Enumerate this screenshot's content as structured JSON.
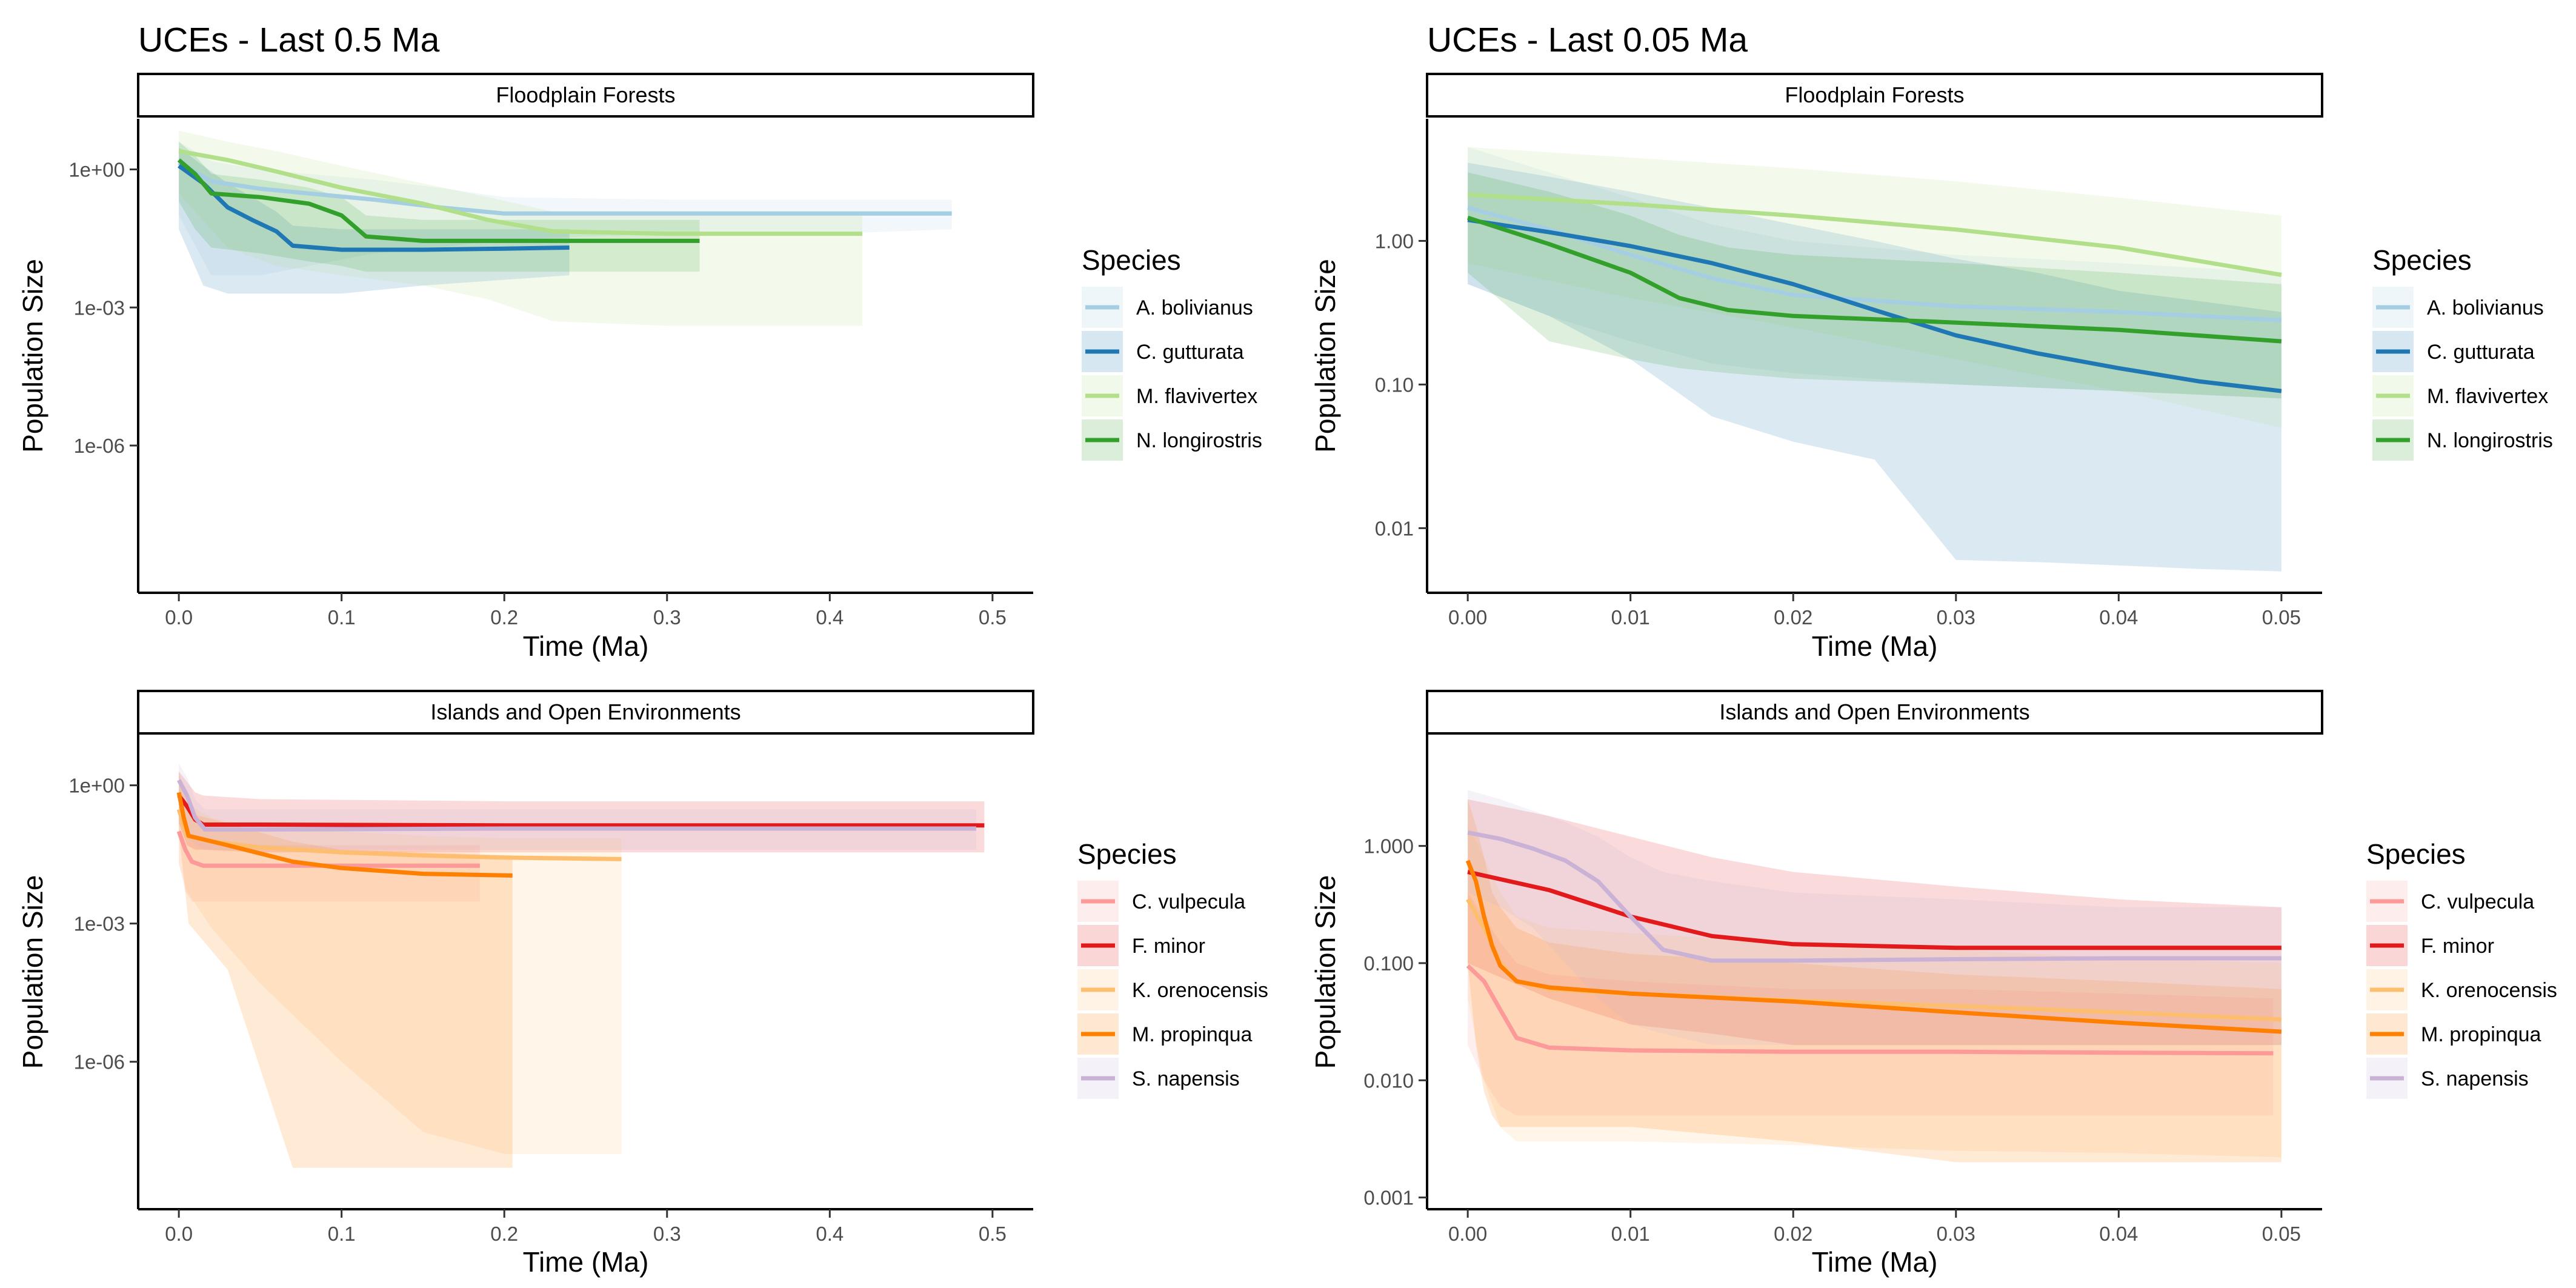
{
  "chart_data": [
    {
      "type": "line",
      "title": "UCEs - Last 0.5 Ma",
      "facet": "Floodplain Forests",
      "xlabel": "Time (Ma)",
      "ylabel": "Population Size",
      "y_scale": "log",
      "xlim": [
        -0.025,
        0.525
      ],
      "ylim_log10": [
        -9.2,
        1.1
      ],
      "x_ticks": [
        0.0,
        0.1,
        0.2,
        0.3,
        0.4,
        0.5
      ],
      "x_tick_labels": [
        "0.0",
        "0.1",
        "0.2",
        "0.3",
        "0.4",
        "0.5"
      ],
      "y_ticks_log10": [
        0,
        -3,
        -6
      ],
      "y_tick_labels": [
        "1e+00",
        "1e-03",
        "1e-06"
      ],
      "legend": {
        "title": "Species",
        "position": "right"
      },
      "series": [
        {
          "name": "A. bolivianus",
          "color": "#a6cee3",
          "x": [
            0.0,
            0.02,
            0.05,
            0.08,
            0.12,
            0.16,
            0.2,
            0.3,
            0.4,
            0.475
          ],
          "y": [
            1.4,
            0.55,
            0.38,
            0.3,
            0.22,
            0.15,
            0.11,
            0.11,
            0.11,
            0.11
          ],
          "band_upper": [
            4.0,
            1.5,
            1.0,
            0.8,
            0.6,
            0.4,
            0.25,
            0.22,
            0.22,
            0.22
          ],
          "band_lower": [
            0.1,
            0.005,
            0.005,
            0.008,
            0.015,
            0.02,
            0.03,
            0.04,
            0.04,
            0.05
          ]
        },
        {
          "name": "C. gutturata",
          "color": "#1f78b4",
          "x": [
            0.0,
            0.015,
            0.03,
            0.045,
            0.06,
            0.07,
            0.1,
            0.15,
            0.2,
            0.24
          ],
          "y": [
            1.2,
            0.5,
            0.15,
            0.08,
            0.045,
            0.022,
            0.018,
            0.018,
            0.019,
            0.02
          ],
          "band_upper": [
            3.0,
            1.2,
            0.5,
            0.25,
            0.12,
            0.06,
            0.05,
            0.05,
            0.05,
            0.05
          ],
          "band_lower": [
            0.05,
            0.003,
            0.002,
            0.002,
            0.002,
            0.002,
            0.002,
            0.003,
            0.004,
            0.005
          ]
        },
        {
          "name": "M. flavivertex",
          "color": "#b2df8a",
          "x": [
            0.0,
            0.03,
            0.06,
            0.1,
            0.15,
            0.19,
            0.23,
            0.3,
            0.42
          ],
          "y": [
            2.5,
            1.6,
            0.9,
            0.4,
            0.18,
            0.08,
            0.045,
            0.04,
            0.04
          ],
          "band_upper": [
            7.0,
            4.0,
            2.5,
            1.2,
            0.5,
            0.25,
            0.12,
            0.1,
            0.1
          ],
          "band_lower": [
            0.3,
            0.02,
            0.008,
            0.005,
            0.003,
            0.0015,
            0.0005,
            0.0004,
            0.0004
          ]
        },
        {
          "name": "N. longirostris",
          "color": "#33a02c",
          "x": [
            0.0,
            0.01,
            0.02,
            0.05,
            0.08,
            0.1,
            0.115,
            0.15,
            0.2,
            0.32
          ],
          "y": [
            1.6,
            0.8,
            0.3,
            0.25,
            0.18,
            0.1,
            0.035,
            0.028,
            0.028,
            0.028
          ],
          "band_upper": [
            4.0,
            2.0,
            0.8,
            0.6,
            0.4,
            0.25,
            0.1,
            0.08,
            0.08,
            0.08
          ],
          "band_lower": [
            0.2,
            0.05,
            0.02,
            0.015,
            0.01,
            0.008,
            0.006,
            0.006,
            0.006,
            0.006
          ]
        }
      ]
    },
    {
      "type": "line",
      "title": "UCEs - Last 0.05 Ma",
      "facet": "Floodplain Forests",
      "xlabel": "Time (Ma)",
      "ylabel": "Population Size",
      "y_scale": "log",
      "xlim": [
        -0.0025,
        0.0525
      ],
      "ylim_log10": [
        -2.45,
        0.85
      ],
      "x_ticks": [
        0.0,
        0.01,
        0.02,
        0.03,
        0.04,
        0.05
      ],
      "x_tick_labels": [
        "0.00",
        "0.01",
        "0.02",
        "0.03",
        "0.04",
        "0.05"
      ],
      "y_ticks_log10": [
        0,
        -1,
        -2
      ],
      "y_tick_labels": [
        "1.00",
        "0.10",
        "0.01"
      ],
      "legend": {
        "title": "Species",
        "position": "right"
      },
      "series": [
        {
          "name": "A. bolivianus",
          "color": "#a6cee3",
          "x": [
            0.0,
            0.005,
            0.01,
            0.015,
            0.02,
            0.03,
            0.04,
            0.05
          ],
          "y": [
            1.7,
            1.2,
            0.8,
            0.55,
            0.42,
            0.35,
            0.32,
            0.28
          ],
          "band_upper": [
            4.5,
            3.0,
            2.0,
            1.3,
            1.0,
            0.8,
            0.7,
            0.6
          ],
          "band_lower": [
            0.5,
            0.3,
            0.2,
            0.14,
            0.12,
            0.1,
            0.09,
            0.08
          ]
        },
        {
          "name": "C. gutturata",
          "color": "#1f78b4",
          "x": [
            0.0,
            0.005,
            0.01,
            0.015,
            0.02,
            0.025,
            0.03,
            0.035,
            0.04,
            0.045,
            0.05
          ],
          "y": [
            1.4,
            1.15,
            0.92,
            0.7,
            0.5,
            0.33,
            0.22,
            0.165,
            0.13,
            0.105,
            0.09
          ],
          "band_upper": [
            3.5,
            2.8,
            2.2,
            1.7,
            1.3,
            1.0,
            0.75,
            0.6,
            0.45,
            0.38,
            0.32
          ],
          "band_lower": [
            0.5,
            0.3,
            0.15,
            0.06,
            0.04,
            0.03,
            0.006,
            0.0058,
            0.0055,
            0.0052,
            0.005
          ]
        },
        {
          "name": "M. flavivertex",
          "color": "#b2df8a",
          "x": [
            0.0,
            0.01,
            0.02,
            0.03,
            0.04,
            0.05
          ],
          "y": [
            2.1,
            1.8,
            1.5,
            1.2,
            0.9,
            0.58
          ],
          "band_upper": [
            4.5,
            3.8,
            3.2,
            2.6,
            2.0,
            1.5
          ],
          "band_lower": [
            0.7,
            0.4,
            0.25,
            0.15,
            0.09,
            0.05
          ]
        },
        {
          "name": "N. longirostris",
          "color": "#33a02c",
          "x": [
            0.0,
            0.005,
            0.01,
            0.013,
            0.016,
            0.02,
            0.03,
            0.04,
            0.05
          ],
          "y": [
            1.45,
            0.95,
            0.6,
            0.4,
            0.33,
            0.3,
            0.27,
            0.24,
            0.2
          ],
          "band_upper": [
            3.0,
            2.2,
            1.5,
            1.1,
            0.9,
            0.8,
            0.7,
            0.6,
            0.5
          ],
          "band_lower": [
            0.6,
            0.2,
            0.15,
            0.13,
            0.12,
            0.11,
            0.1,
            0.09,
            0.08
          ]
        }
      ]
    },
    {
      "type": "line",
      "title": "",
      "facet": "Islands and Open Environments",
      "xlabel": "Time (Ma)",
      "ylabel": "Population Size",
      "y_scale": "log",
      "xlim": [
        -0.025,
        0.525
      ],
      "ylim_log10": [
        -9.2,
        1.1
      ],
      "x_ticks": [
        0.0,
        0.1,
        0.2,
        0.3,
        0.4,
        0.5
      ],
      "x_tick_labels": [
        "0.0",
        "0.1",
        "0.2",
        "0.3",
        "0.4",
        "0.5"
      ],
      "y_ticks_log10": [
        0,
        -3,
        -6
      ],
      "y_tick_labels": [
        "1e+00",
        "1e-03",
        "1e-06"
      ],
      "legend": {
        "title": "Species",
        "position": "right"
      },
      "series": [
        {
          "name": "C. vulpecula",
          "color": "#fb9a99",
          "x": [
            0.0,
            0.004,
            0.008,
            0.015,
            0.05,
            0.1,
            0.185
          ],
          "y": [
            0.1,
            0.04,
            0.022,
            0.018,
            0.018,
            0.018,
            0.018
          ],
          "band_upper": [
            0.4,
            0.15,
            0.08,
            0.06,
            0.05,
            0.05,
            0.05
          ],
          "band_lower": [
            0.02,
            0.005,
            0.003,
            0.003,
            0.003,
            0.003,
            0.003
          ]
        },
        {
          "name": "F. minor",
          "color": "#e31a1c",
          "x": [
            0.0,
            0.005,
            0.01,
            0.015,
            0.05,
            0.2,
            0.35,
            0.495
          ],
          "y": [
            0.6,
            0.35,
            0.18,
            0.14,
            0.14,
            0.135,
            0.135,
            0.135
          ],
          "band_upper": [
            2.0,
            1.2,
            0.7,
            0.6,
            0.5,
            0.45,
            0.45,
            0.45
          ],
          "band_lower": [
            0.15,
            0.05,
            0.04,
            0.04,
            0.035,
            0.035,
            0.035,
            0.035
          ]
        },
        {
          "name": "K. orenocensis",
          "color": "#fdbf6f",
          "x": [
            0.0,
            0.005,
            0.02,
            0.05,
            0.1,
            0.15,
            0.2,
            0.272
          ],
          "y": [
            0.3,
            0.08,
            0.06,
            0.045,
            0.035,
            0.03,
            0.027,
            0.025
          ],
          "band_upper": [
            1.0,
            0.4,
            0.2,
            0.12,
            0.1,
            0.08,
            0.07,
            0.07
          ],
          "band_lower": [
            0.02,
            0.005,
            0.0008,
            5e-05,
            1e-06,
            3e-08,
            1e-08,
            1e-08
          ]
        },
        {
          "name": "M. propinqua",
          "color": "#ff7f00",
          "x": [
            0.0,
            0.003,
            0.006,
            0.03,
            0.07,
            0.1,
            0.15,
            0.205
          ],
          "y": [
            0.7,
            0.2,
            0.08,
            0.05,
            0.022,
            0.016,
            0.012,
            0.011
          ],
          "band_upper": [
            2.0,
            0.8,
            0.25,
            0.15,
            0.06,
            0.04,
            0.035,
            0.03
          ],
          "band_lower": [
            0.1,
            0.01,
            0.001,
            0.0001,
            5e-09,
            5e-09,
            5e-09,
            5e-09
          ]
        },
        {
          "name": "S. napensis",
          "color": "#cab2d6",
          "x": [
            0.0,
            0.005,
            0.01,
            0.016,
            0.05,
            0.2,
            0.35,
            0.49
          ],
          "y": [
            1.3,
            0.6,
            0.2,
            0.11,
            0.11,
            0.115,
            0.115,
            0.115
          ],
          "band_upper": [
            3.0,
            1.5,
            0.5,
            0.3,
            0.3,
            0.3,
            0.3,
            0.3
          ],
          "band_lower": [
            0.3,
            0.1,
            0.05,
            0.04,
            0.04,
            0.04,
            0.04,
            0.04
          ]
        }
      ]
    },
    {
      "type": "line",
      "title": "",
      "facet": "Islands and Open Environments",
      "xlabel": "Time (Ma)",
      "ylabel": "Population Size",
      "y_scale": "log",
      "xlim": [
        -0.0025,
        0.0525
      ],
      "ylim_log10": [
        -3.1,
        0.95
      ],
      "x_ticks": [
        0.0,
        0.01,
        0.02,
        0.03,
        0.04,
        0.05
      ],
      "x_tick_labels": [
        "0.00",
        "0.01",
        "0.02",
        "0.03",
        "0.04",
        "0.05"
      ],
      "y_ticks_log10": [
        0,
        -1,
        -2,
        -3
      ],
      "y_tick_labels": [
        "1.000",
        "0.100",
        "0.010",
        "0.001"
      ],
      "legend": {
        "title": "Species",
        "position": "right"
      },
      "series": [
        {
          "name": "C. vulpecula",
          "color": "#fb9a99",
          "x": [
            0.0,
            0.001,
            0.002,
            0.003,
            0.005,
            0.01,
            0.02,
            0.03,
            0.04,
            0.0495
          ],
          "y": [
            0.095,
            0.07,
            0.04,
            0.023,
            0.019,
            0.018,
            0.0175,
            0.0175,
            0.0172,
            0.017
          ],
          "band_upper": [
            0.4,
            0.25,
            0.15,
            0.1,
            0.08,
            0.07,
            0.06,
            0.06,
            0.055,
            0.05
          ],
          "band_lower": [
            0.02,
            0.01,
            0.006,
            0.005,
            0.005,
            0.005,
            0.005,
            0.005,
            0.005,
            0.005
          ]
        },
        {
          "name": "F. minor",
          "color": "#e31a1c",
          "x": [
            0.0,
            0.005,
            0.01,
            0.015,
            0.02,
            0.03,
            0.04,
            0.05
          ],
          "y": [
            0.6,
            0.42,
            0.25,
            0.17,
            0.145,
            0.135,
            0.135,
            0.135
          ],
          "band_upper": [
            2.5,
            1.8,
            1.2,
            0.8,
            0.6,
            0.45,
            0.35,
            0.3
          ],
          "band_lower": [
            0.1,
            0.05,
            0.03,
            0.025,
            0.02,
            0.02,
            0.02,
            0.02
          ]
        },
        {
          "name": "K. orenocensis",
          "color": "#fdbf6f",
          "x": [
            0.0,
            0.001,
            0.002,
            0.003,
            0.005,
            0.01,
            0.02,
            0.03,
            0.04,
            0.05
          ],
          "y": [
            0.35,
            0.2,
            0.1,
            0.07,
            0.06,
            0.055,
            0.048,
            0.043,
            0.038,
            0.033
          ],
          "band_upper": [
            1.5,
            0.8,
            0.4,
            0.25,
            0.2,
            0.18,
            0.15,
            0.13,
            0.11,
            0.1
          ],
          "band_lower": [
            0.05,
            0.01,
            0.004,
            0.003,
            0.003,
            0.003,
            0.0028,
            0.0025,
            0.0024,
            0.0022
          ]
        },
        {
          "name": "M. propinqua",
          "color": "#ff7f00",
          "x": [
            0.0,
            0.0005,
            0.001,
            0.0015,
            0.002,
            0.003,
            0.005,
            0.01,
            0.02,
            0.03,
            0.04,
            0.05
          ],
          "y": [
            0.75,
            0.5,
            0.25,
            0.14,
            0.095,
            0.07,
            0.062,
            0.055,
            0.047,
            0.038,
            0.031,
            0.026
          ],
          "band_upper": [
            2.5,
            1.5,
            0.8,
            0.4,
            0.3,
            0.2,
            0.15,
            0.12,
            0.1,
            0.08,
            0.07,
            0.06
          ],
          "band_lower": [
            0.1,
            0.02,
            0.008,
            0.005,
            0.004,
            0.004,
            0.004,
            0.004,
            0.003,
            0.002,
            0.002,
            0.002
          ]
        },
        {
          "name": "S. napensis",
          "color": "#cab2d6",
          "x": [
            0.0,
            0.002,
            0.004,
            0.006,
            0.008,
            0.01,
            0.012,
            0.015,
            0.02,
            0.03,
            0.04,
            0.05
          ],
          "y": [
            1.3,
            1.15,
            0.95,
            0.75,
            0.5,
            0.25,
            0.13,
            0.105,
            0.105,
            0.108,
            0.11,
            0.11
          ],
          "band_upper": [
            3.0,
            2.5,
            2.0,
            1.6,
            1.2,
            0.8,
            0.6,
            0.5,
            0.4,
            0.35,
            0.3,
            0.3
          ],
          "band_lower": [
            0.4,
            0.3,
            0.2,
            0.1,
            0.05,
            0.03,
            0.025,
            0.02,
            0.02,
            0.02,
            0.02,
            0.02
          ]
        }
      ]
    }
  ]
}
